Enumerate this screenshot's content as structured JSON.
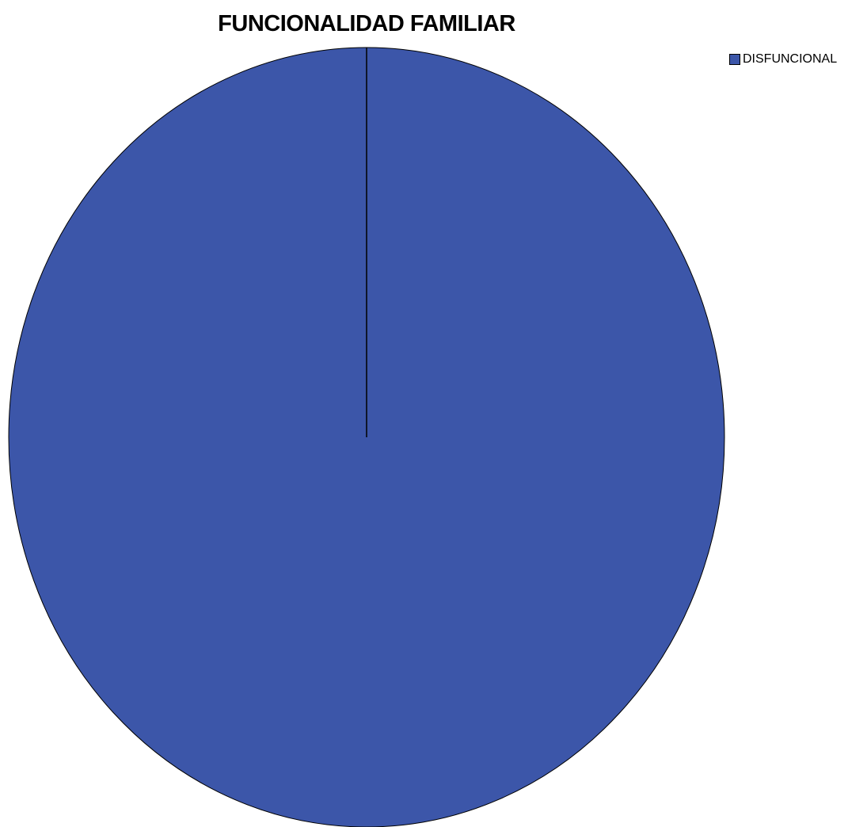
{
  "chart_data": {
    "type": "pie",
    "title": "FUNCIONALIDAD FAMILIAR",
    "categories": [
      "DISFUNCIONAL"
    ],
    "values": [
      100
    ],
    "colors": [
      "#3C56A9"
    ],
    "legend_position": "top-right"
  }
}
